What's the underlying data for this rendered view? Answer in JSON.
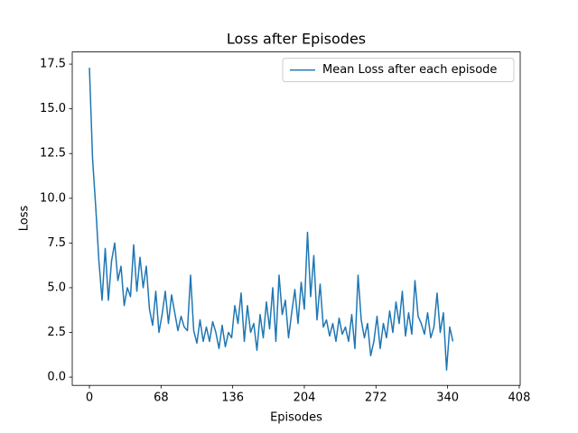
{
  "chart_data": {
    "type": "line",
    "title": "Loss after Episodes",
    "xlabel": "Episodes",
    "ylabel": "Loss",
    "x": [
      0,
      3,
      6,
      9,
      12,
      15,
      18,
      21,
      24,
      27,
      30,
      33,
      36,
      39,
      42,
      45,
      48,
      51,
      54,
      57,
      60,
      63,
      66,
      69,
      72,
      75,
      78,
      81,
      84,
      87,
      90,
      93,
      96,
      99,
      102,
      105,
      108,
      111,
      114,
      117,
      120,
      123,
      126,
      129,
      132,
      135,
      138,
      141,
      144,
      147,
      150,
      153,
      156,
      159,
      162,
      165,
      168,
      171,
      174,
      177,
      180,
      183,
      186,
      189,
      192,
      195,
      198,
      201,
      204,
      207,
      210,
      213,
      216,
      219,
      222,
      225,
      228,
      231,
      234,
      237,
      240,
      243,
      246,
      249,
      252,
      255,
      258,
      261,
      264,
      267,
      270,
      273,
      276,
      279,
      282,
      285,
      288,
      291,
      294,
      297,
      300,
      303,
      306,
      309,
      312,
      315,
      318,
      321,
      324,
      327,
      330,
      333,
      336,
      339,
      342,
      345
    ],
    "series": [
      {
        "name": "Mean Loss after each episode",
        "color": "#1f77b4",
        "values": [
          17.3,
          12.2,
          9.5,
          6.5,
          4.3,
          7.2,
          4.3,
          6.5,
          7.5,
          5.4,
          6.2,
          4.0,
          5.0,
          4.5,
          7.4,
          4.8,
          6.7,
          5.0,
          6.2,
          3.8,
          2.9,
          4.8,
          2.5,
          3.5,
          4.8,
          3.0,
          4.6,
          3.6,
          2.6,
          3.4,
          2.8,
          2.6,
          5.7,
          2.6,
          1.9,
          3.2,
          2.0,
          2.8,
          2.0,
          3.1,
          2.5,
          1.6,
          2.9,
          1.7,
          2.5,
          2.2,
          4.0,
          3.0,
          4.7,
          2.0,
          4.0,
          2.5,
          3.0,
          1.5,
          3.5,
          2.2,
          4.2,
          2.7,
          5.0,
          2.0,
          5.7,
          3.5,
          4.3,
          2.2,
          3.6,
          4.9,
          3.0,
          5.3,
          3.8,
          8.1,
          4.5,
          6.8,
          3.2,
          5.2,
          2.8,
          3.2,
          2.3,
          3.0,
          2.0,
          3.3,
          2.4,
          2.8,
          2.0,
          3.5,
          1.6,
          5.7,
          3.2,
          2.2,
          3.0,
          1.2,
          2.0,
          3.4,
          1.6,
          3.0,
          2.2,
          3.7,
          2.5,
          4.2,
          3.0,
          4.8,
          2.3,
          3.6,
          2.4,
          5.4,
          3.4,
          3.0,
          2.4,
          3.6,
          2.2,
          2.8,
          4.7,
          2.5,
          3.6,
          0.4,
          2.8,
          2.0
        ]
      }
    ],
    "xlim": [
      -16.3,
      408.9
    ],
    "ylim": [
      -0.46,
      18.18
    ],
    "xticks": [
      0,
      68,
      136,
      204,
      272,
      340,
      408
    ],
    "yticks": [
      {
        "value": 0,
        "label": "0.0"
      },
      2.5,
      {
        "value": 5,
        "label": "5.0"
      },
      7.5,
      {
        "value": 10,
        "label": "10.0"
      },
      12.5,
      {
        "value": 15,
        "label": "15.0"
      },
      17.5
    ],
    "legend": "upper right",
    "grid": false
  }
}
